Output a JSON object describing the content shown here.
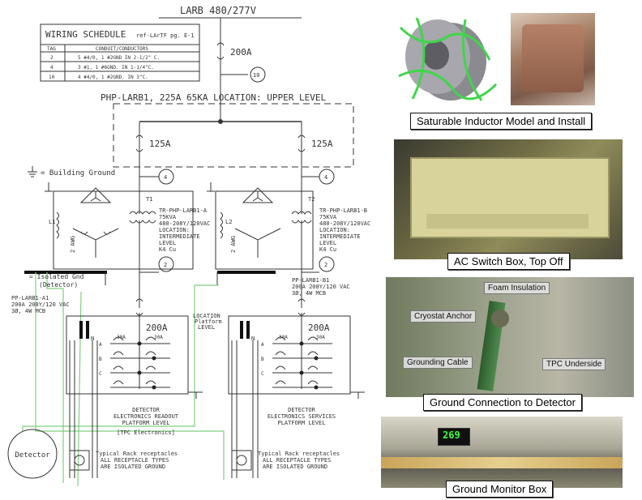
{
  "schematic": {
    "source_label": "LARB 480/277V",
    "wiring_schedule": {
      "title": "WIRING SCHEDULE",
      "ref": "ref-LArTF pg. E-1",
      "headers": [
        "TAG",
        "CONDUIT/CONDUCTORS"
      ],
      "rows": [
        [
          "2",
          "5 #4/0, 1 #2GND IN 2-1/2\" C."
        ],
        [
          "4",
          "3 #1, 1 #6GND. IN 1-1/4\"C."
        ],
        [
          "10",
          "4 #4/0, 1 #2GND. IN 3\"C."
        ]
      ]
    },
    "main_breaker": "200A",
    "tag_10": "10",
    "panel_label": "PHP-LARB1, 225A 65KA LOCATION: UPPER LEVEL",
    "breaker_left": "125A",
    "breaker_right": "125A",
    "building_ground": "= Building Ground",
    "tag_4_left": "4",
    "tag_4_right": "4",
    "t1": "T1",
    "t2": "T2",
    "l1": "L1",
    "l2": "L2",
    "awg_left": "2 AWG",
    "awg_right": "2 AWG",
    "xfmr_left": [
      "TR-PHP-LARB1-A",
      "75KVA",
      "480-208Y/120VAC",
      "LOCATION:",
      "INTERMEDIATE",
      "LEVEL",
      "K4 Cu"
    ],
    "xfmr_right": [
      "TR-PHP-LARB1-B",
      "75KVA",
      "480-208Y/120VAC",
      "LOCATION:",
      "INTERMEDIATE",
      "LEVEL",
      "K4 Cu"
    ],
    "isolated_gnd": [
      "= Isolated Gnd",
      "(Detector)"
    ],
    "tag_2_left": "2",
    "tag_2_right": "2",
    "pp_left": [
      "PP-LARB1-A1",
      "200A 208Y/120 VAC",
      "3Ø, 4W MCB"
    ],
    "pp_right": [
      "PP-LARB1-B1",
      "200A 208Y/120 VAC",
      "3Ø, 4W MCB"
    ],
    "location_platform": [
      "LOCATION",
      "Platform",
      "LEVEL"
    ],
    "sub_breaker_left": "200A",
    "sub_breaker_right": "200A",
    "n_label": "N",
    "phase_labels": [
      "A",
      "B",
      "C"
    ],
    "amp_30": "30A",
    "detector_left": [
      "DETECTOR",
      "ELECTRONICS READOUT",
      "PLATFORM LEVEL"
    ],
    "detector_right": [
      "DETECTOR",
      "ELECTRONICS SERVICES",
      "PLATFORM LEVEL"
    ],
    "tpc_electronics": "[TPC Electronics]",
    "detector_circle": "Detector",
    "receptacle_note_left": [
      "Typical Rack receptacles",
      "ALL RECEPTACLE TYPES",
      "ARE ISOLATED GROUND"
    ],
    "receptacle_note_right": [
      "Typical Rack receptacles",
      "ALL RECEPTACLE TYPES",
      "ARE ISOLATED GROUND"
    ]
  },
  "photos": {
    "inductor_caption": "Saturable Inductor Model and Install",
    "ac_switch_caption": "AC Switch Box, Top Off",
    "ground_conn_caption": "Ground Connection to Detector",
    "ground_monitor_caption": "Ground Monitor Box",
    "tag_foam": "Foam Insulation",
    "tag_anchor": "Cryostat Anchor",
    "tag_cable": "Grounding Cable",
    "tag_tpc": "TPC Underside",
    "monitor_readout": "269"
  },
  "colors": {
    "schematic_line": "#333333",
    "isolated_ground_line": "#7fcf7f",
    "inductor_body": "#8a8a90",
    "inductor_wire": "#3fd64a",
    "led_readout": "#3cff3c"
  }
}
